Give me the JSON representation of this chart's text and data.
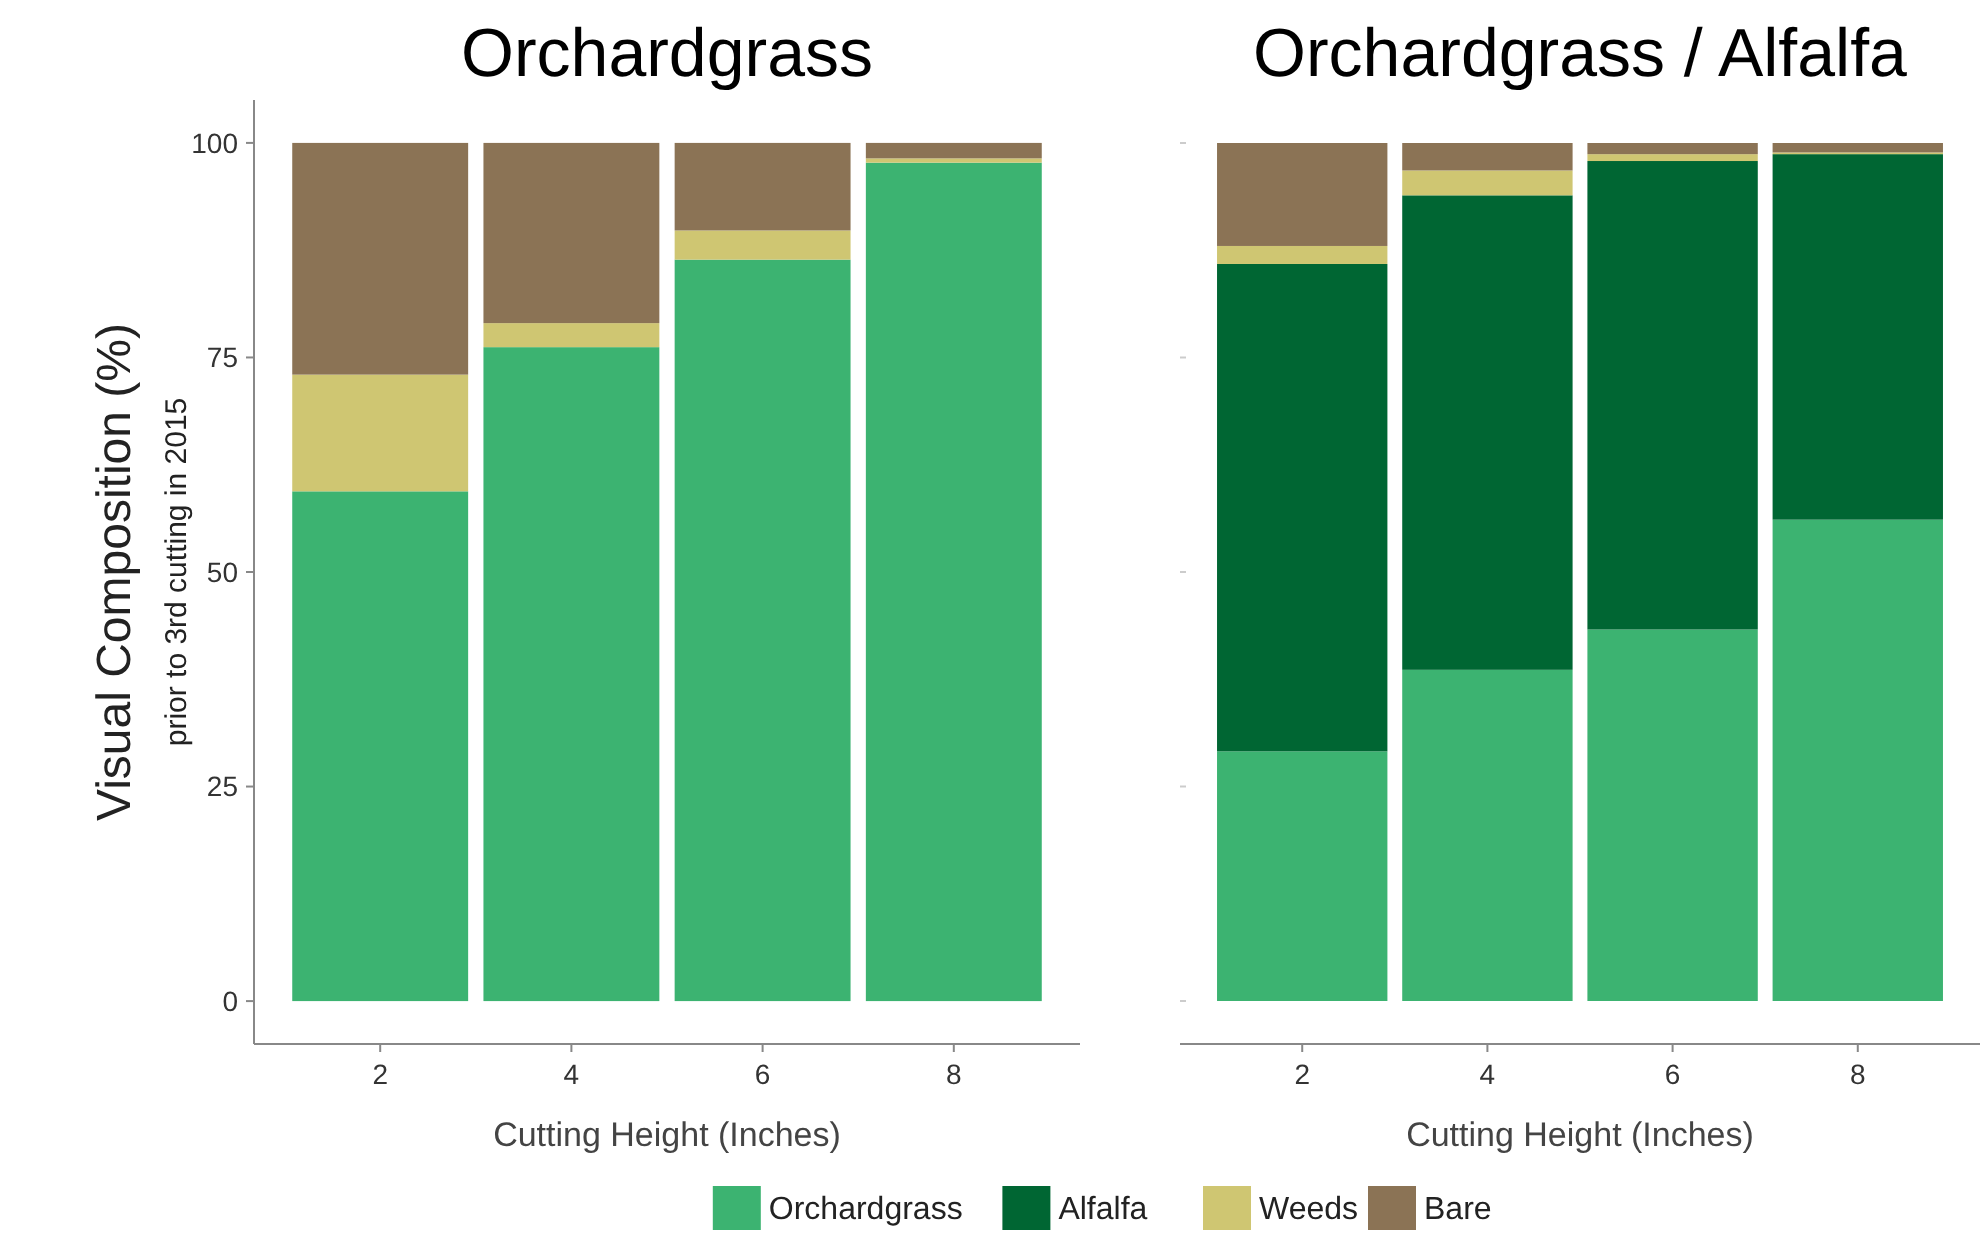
{
  "chart_data": [
    {
      "type": "bar",
      "title": "Orchardgrass",
      "xlabel": "Cutting Height (Inches)",
      "ylabel": "Visual Composition (%)\nprior to 3rd cutting in 2015",
      "categories": [
        "2",
        "4",
        "6",
        "8"
      ],
      "stacked": true,
      "ylim": [
        -5,
        105
      ],
      "yticks": [
        0,
        25,
        50,
        75,
        100
      ],
      "grid": false,
      "series": [
        {
          "color": "#3cb371",
          "values": [
            59.4,
            76.2,
            86.4,
            97.7
          ]
        },
        {
          "color": "#cfc672",
          "values": [
            13.6,
            2.8,
            3.4,
            0.5
          ]
        },
        {
          "color": "#8b7355",
          "values": [
            27,
            21,
            10.2,
            1.8
          ]
        }
      ]
    },
    {
      "type": "bar",
      "title": "Orchardgrass / Alfalfa",
      "xlabel": "Cutting Height (Inches)",
      "categories": [
        "2",
        "4",
        "6",
        "8"
      ],
      "stacked": true,
      "ylim": [
        0,
        100
      ],
      "yticks": [
        0,
        25,
        50,
        75,
        100
      ],
      "tick_labels": "x",
      "grid": false,
      "legend": "bottom",
      "series": [
        {
          "name": "Orchardgrass",
          "color": "#3cb371",
          "values": [
            29.1,
            38.6,
            43.3,
            56.1
          ]
        },
        {
          "name": "Alfalfa",
          "color": "#006633",
          "values": [
            56.8,
            55.3,
            54.6,
            42.6
          ]
        },
        {
          "name": "Weeds",
          "color": "#cfc672",
          "values": [
            2.1,
            2.9,
            0.8,
            0.2
          ]
        },
        {
          "name": "Bare",
          "color": "#8b7355",
          "values": [
            12,
            3.2,
            1.3,
            1.1
          ]
        }
      ]
    }
  ]
}
